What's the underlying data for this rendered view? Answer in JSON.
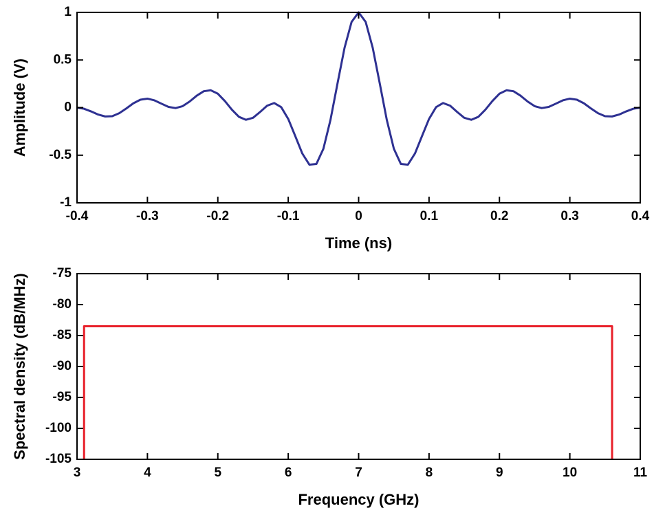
{
  "chart_data": [
    {
      "type": "line",
      "x_label": "Time (ns)",
      "y_label": "Amplitude (V)",
      "xlim": [
        -0.4,
        0.4
      ],
      "ylim": [
        -1,
        1
      ],
      "xticks": [
        -0.4,
        -0.3,
        -0.2,
        -0.1,
        0,
        0.1,
        0.2,
        0.3,
        0.4
      ],
      "yticks": [
        -1,
        -0.5,
        0,
        0.5,
        1
      ],
      "series": [
        {
          "color": "#2e3192",
          "x": [
            -0.4,
            -0.39,
            -0.38,
            -0.37,
            -0.36,
            -0.35,
            -0.34,
            -0.33,
            -0.32,
            -0.31,
            -0.3,
            -0.29,
            -0.28,
            -0.27,
            -0.26,
            -0.25,
            -0.24,
            -0.23,
            -0.22,
            -0.21,
            -0.2,
            -0.19,
            -0.18,
            -0.17,
            -0.16,
            -0.15,
            -0.14,
            -0.13,
            -0.12,
            -0.11,
            -0.1,
            -0.09,
            -0.08,
            -0.07,
            -0.06,
            -0.05,
            -0.04,
            -0.03,
            -0.02,
            -0.01,
            0,
            0.01,
            0.02,
            0.03,
            0.04,
            0.05,
            0.06,
            0.07,
            0.08,
            0.09,
            0.1,
            0.11,
            0.12,
            0.13,
            0.14,
            0.15,
            0.16,
            0.17,
            0.18,
            0.19,
            0.2,
            0.21,
            0.22,
            0.23,
            0.24,
            0.25,
            0.26,
            0.27,
            0.28,
            0.29,
            0.3,
            0.31,
            0.32,
            0.33,
            0.34,
            0.35,
            0.36,
            0.37,
            0.38,
            0.39,
            0.4
          ],
          "values": [
            0,
            -0.012,
            -0.04,
            -0.073,
            -0.093,
            -0.09,
            -0.059,
            -0.009,
            0.045,
            0.083,
            0.094,
            0.076,
            0.041,
            0.007,
            -0.005,
            0.015,
            0.064,
            0.125,
            0.172,
            0.182,
            0.146,
            0.069,
            -0.022,
            -0.097,
            -0.128,
            -0.107,
            -0.046,
            0.02,
            0.048,
            0.005,
            -0.119,
            -0.299,
            -0.482,
            -0.599,
            -0.592,
            -0.431,
            -0.129,
            0.254,
            0.628,
            0.9,
            1,
            0.9,
            0.628,
            0.254,
            -0.129,
            -0.431,
            -0.592,
            -0.599,
            -0.482,
            -0.299,
            -0.119,
            0.005,
            0.048,
            0.02,
            -0.046,
            -0.107,
            -0.128,
            -0.097,
            -0.022,
            0.069,
            0.146,
            0.182,
            0.172,
            0.125,
            0.064,
            0.015,
            -0.005,
            0.007,
            0.041,
            0.076,
            0.094,
            0.083,
            0.045,
            -0.009,
            -0.059,
            -0.09,
            -0.093,
            -0.073,
            -0.04,
            -0.012,
            0
          ]
        }
      ]
    },
    {
      "type": "line",
      "x_label": "Frequency (GHz)",
      "y_label": "Spectral density (dB/MHz)",
      "xlim": [
        3,
        11
      ],
      "ylim": [
        -105,
        -75
      ],
      "xticks": [
        3,
        4,
        5,
        6,
        7,
        8,
        9,
        10,
        11
      ],
      "yticks": [
        -105,
        -100,
        -95,
        -90,
        -85,
        -80,
        -75
      ],
      "series": [
        {
          "color": "#e8202a",
          "x": [
            3.1,
            3.1,
            10.6,
            10.6
          ],
          "values": [
            -105,
            -83.5,
            -83.5,
            -105
          ]
        }
      ]
    }
  ]
}
